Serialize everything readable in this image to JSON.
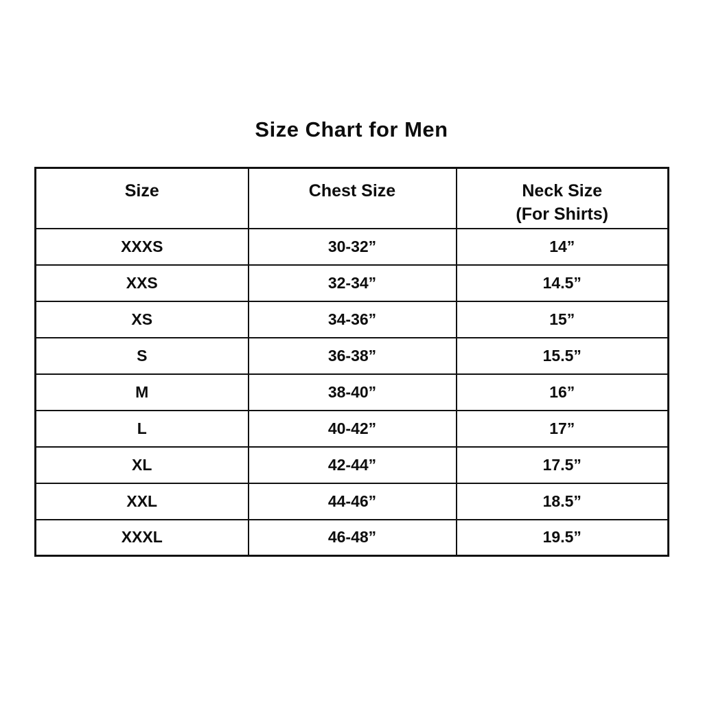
{
  "page": {
    "title": "Size Chart for Men"
  },
  "colors": {
    "background": "#ffffff",
    "border": "#111111",
    "text": "#0d0d0d"
  },
  "chart_data": {
    "type": "table",
    "title": "Size Chart for Men",
    "columns": [
      "Size",
      "Chest Size",
      "Neck Size (For Shirts)"
    ],
    "rows": [
      [
        "XXXS",
        "30-32”",
        "14”"
      ],
      [
        "XXS",
        "32-34”",
        "14.5”"
      ],
      [
        "XS",
        "34-36”",
        "15”"
      ],
      [
        "S",
        "36-38”",
        "15.5”"
      ],
      [
        "M",
        "38-40”",
        "16”"
      ],
      [
        "L",
        "40-42”",
        "17”"
      ],
      [
        "XL",
        "42-44”",
        "17.5”"
      ],
      [
        "XXL",
        "44-46”",
        "18.5”"
      ],
      [
        "XXXL",
        "46-48”",
        "19.5”"
      ]
    ]
  },
  "table": {
    "headers": {
      "size": "Size",
      "chest": "Chest Size",
      "neck_line1": "Neck Size",
      "neck_line2": "(For Shirts)"
    },
    "rows": [
      {
        "size": "XXXS",
        "chest": "30-32”",
        "neck": "14”"
      },
      {
        "size": "XXS",
        "chest": "32-34”",
        "neck": "14.5”"
      },
      {
        "size": "XS",
        "chest": "34-36”",
        "neck": "15”"
      },
      {
        "size": "S",
        "chest": "36-38”",
        "neck": "15.5”"
      },
      {
        "size": "M",
        "chest": "38-40”",
        "neck": "16”"
      },
      {
        "size": "L",
        "chest": "40-42”",
        "neck": "17”"
      },
      {
        "size": "XL",
        "chest": "42-44”",
        "neck": "17.5”"
      },
      {
        "size": "XXL",
        "chest": "44-46”",
        "neck": "18.5”"
      },
      {
        "size": "XXXL",
        "chest": "46-48”",
        "neck": "19.5”"
      }
    ]
  }
}
